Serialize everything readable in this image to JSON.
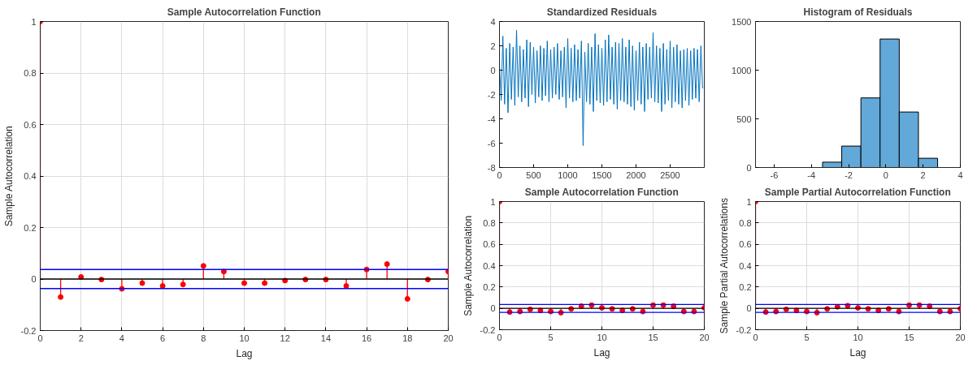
{
  "chart_data": [
    {
      "type": "lollipop",
      "title": "Sample Autocorrelation Function",
      "xlabel": "Lag",
      "ylabel": "Sample Autocorrelation",
      "x": [
        0,
        1,
        2,
        3,
        4,
        5,
        6,
        7,
        8,
        9,
        10,
        11,
        12,
        13,
        14,
        15,
        16,
        17,
        18,
        19,
        20
      ],
      "series": [
        {
          "color": "#ff0000",
          "values": [
            1,
            -0.07,
            0.008,
            -0.002,
            -0.038,
            -0.016,
            -0.027,
            -0.021,
            0.051,
            0.029,
            -0.016,
            -0.016,
            -0.006,
            -0.002,
            -0.002,
            -0.027,
            0.037,
            0.058,
            -0.077,
            -0.002,
            0.029
          ]
        }
      ],
      "xlim": [
        0,
        20
      ],
      "xticks": [
        0,
        2,
        4,
        6,
        8,
        10,
        12,
        14,
        16,
        18,
        20
      ],
      "ylim": [
        -0.2,
        1
      ],
      "yticks": [
        -0.2,
        0,
        0.2,
        0.4,
        0.6,
        0.8,
        1
      ],
      "grid": true,
      "marker": "circle",
      "ref_lines": [
        {
          "axis": "y",
          "value": 0,
          "color": "#000000"
        },
        {
          "axis": "y",
          "value": 0.037,
          "color": "#0000ff"
        },
        {
          "axis": "y",
          "value": -0.037,
          "color": "#0000ff"
        }
      ]
    },
    {
      "type": "line",
      "title": "Standardized Residuals",
      "series": [
        {
          "color": "#0072bd",
          "x": [
            0,
            25,
            50,
            75,
            100,
            125,
            150,
            175,
            200,
            225,
            250,
            275,
            300,
            325,
            350,
            375,
            400,
            425,
            450,
            475,
            500,
            525,
            550,
            575,
            600,
            625,
            650,
            675,
            700,
            725,
            750,
            775,
            800,
            825,
            850,
            875,
            900,
            925,
            950,
            975,
            1000,
            1025,
            1050,
            1075,
            1100,
            1125,
            1150,
            1175,
            1200,
            1225,
            1250,
            1275,
            1300,
            1325,
            1350,
            1375,
            1400,
            1425,
            1450,
            1475,
            1500,
            1525,
            1550,
            1575,
            1600,
            1625,
            1650,
            1675,
            1700,
            1725,
            1750,
            1775,
            1800,
            1825,
            1850,
            1875,
            1900,
            1925,
            1950,
            1975,
            2000,
            2025,
            2050,
            2075,
            2100,
            2125,
            2150,
            2175,
            2200,
            2225,
            2250,
            2275,
            2300,
            2325,
            2350,
            2375,
            2400,
            2425,
            2450,
            2475,
            2500,
            2525,
            2550,
            2575,
            2600,
            2625,
            2650,
            2675,
            2700,
            2725,
            2750,
            2775,
            2800,
            2825,
            2850,
            2875,
            2900,
            2925,
            2950,
            2975
          ],
          "values": [
            0.5,
            -2.5,
            2.8,
            -2.8,
            1.8,
            -3.5,
            2.2,
            -2.4,
            1.9,
            -2.9,
            3.3,
            -2.2,
            2.0,
            -2.6,
            1.7,
            -2.3,
            2.5,
            -3.0,
            2.3,
            -2.0,
            1.9,
            -2.7,
            1.6,
            -2.2,
            2.0,
            -2.5,
            1.8,
            -2.1,
            2.4,
            -2.6,
            1.7,
            -2.3,
            1.9,
            -2.0,
            2.2,
            -2.4,
            1.6,
            -2.2,
            1.9,
            -3.1,
            2.6,
            -2.3,
            1.8,
            -2.6,
            2.1,
            -2.5,
            1.7,
            -2.3,
            2.4,
            -6.2,
            1.5,
            -2.6,
            2.2,
            -2.8,
            1.9,
            -3.4,
            3.0,
            -2.5,
            2.1,
            -2.7,
            1.8,
            -2.9,
            2.5,
            -2.6,
            2.9,
            -2.4,
            1.9,
            -2.8,
            2.3,
            -3.2,
            2.2,
            -2.5,
            2.6,
            -2.6,
            1.9,
            -2.8,
            2.5,
            -3.0,
            2.0,
            -3.3,
            1.6,
            -2.5,
            2.3,
            -2.8,
            1.9,
            -3.4,
            2.2,
            -2.4,
            1.9,
            -2.3,
            3.1,
            -2.6,
            2.0,
            -2.7,
            1.8,
            -3.4,
            2.2,
            -2.8,
            1.7,
            -2.5,
            2.4,
            -3.1,
            1.9,
            -2.6,
            2.1,
            -2.8,
            1.6,
            -3.1,
            1.7,
            -2.5,
            1.8,
            -2.9,
            1.6,
            -2.4,
            1.8,
            -2.3,
            1.7,
            -2.6,
            2.0,
            -1.5
          ]
        }
      ],
      "xlim": [
        0,
        3000
      ],
      "xticks": [
        0,
        500,
        1000,
        1500,
        2000,
        2500
      ],
      "ylim": [
        -8,
        4
      ],
      "yticks": [
        -8,
        -6,
        -4,
        -2,
        0,
        2,
        4
      ],
      "grid": false
    },
    {
      "type": "histogram",
      "title": "Histogram of Residuals",
      "color": "#62a8d8",
      "bins": [
        -3.4,
        -2.37,
        -1.34,
        -0.31,
        0.72,
        1.75,
        2.78
      ],
      "values": [
        55,
        220,
        715,
        1320,
        570,
        95
      ],
      "xlim": [
        -7,
        4
      ],
      "xticks": [
        -6,
        -4,
        -2,
        0,
        2,
        4
      ],
      "ylim": [
        0,
        1500
      ],
      "yticks": [
        0,
        500,
        1000,
        1500
      ],
      "grid": false
    },
    {
      "type": "lollipop",
      "title": "Sample Autocorrelation Function",
      "xlabel": "Lag",
      "ylabel": "Sample Autocorrelation",
      "x": [
        0,
        1,
        2,
        3,
        4,
        5,
        6,
        7,
        8,
        9,
        10,
        11,
        12,
        13,
        14,
        15,
        16,
        17,
        18,
        19,
        20
      ],
      "series": [
        {
          "color": "#ff0000",
          "values": [
            1,
            -0.035,
            -0.03,
            -0.01,
            -0.02,
            -0.03,
            -0.04,
            -0.005,
            0.02,
            0.03,
            0.005,
            -0.005,
            -0.02,
            -0.005,
            -0.03,
            0.03,
            0.03,
            0.02,
            -0.03,
            -0.03,
            0.005
          ]
        }
      ],
      "xlim": [
        0,
        20
      ],
      "xticks": [
        0,
        5,
        10,
        15,
        20
      ],
      "ylim": [
        -0.2,
        1
      ],
      "yticks": [
        -0.2,
        0,
        0.2,
        0.4,
        0.6,
        0.8,
        1
      ],
      "grid": true,
      "marker": "circle",
      "ref_lines": [
        {
          "axis": "y",
          "value": 0,
          "color": "#000000"
        },
        {
          "axis": "y",
          "value": 0.037,
          "color": "#0000ff"
        },
        {
          "axis": "y",
          "value": -0.037,
          "color": "#0000ff"
        }
      ]
    },
    {
      "type": "lollipop",
      "title": "Sample Partial Autocorrelation Function",
      "xlabel": "Lag",
      "ylabel": "Sample Partial Autocorrelations",
      "x": [
        0,
        1,
        2,
        3,
        4,
        5,
        6,
        7,
        8,
        9,
        10,
        11,
        12,
        13,
        14,
        15,
        16,
        17,
        18,
        19,
        20
      ],
      "series": [
        {
          "color": "#ff0000",
          "values": [
            1,
            -0.035,
            -0.03,
            -0.01,
            -0.02,
            -0.03,
            -0.04,
            -0.005,
            0.015,
            0.025,
            0.005,
            -0.005,
            -0.02,
            -0.005,
            -0.03,
            0.03,
            0.03,
            0.02,
            -0.03,
            -0.03,
            -0.003
          ]
        }
      ],
      "xlim": [
        0,
        20
      ],
      "xticks": [
        0,
        5,
        10,
        15,
        20
      ],
      "ylim": [
        -0.2,
        1
      ],
      "yticks": [
        -0.2,
        0,
        0.2,
        0.4,
        0.6,
        0.8,
        1
      ],
      "grid": true,
      "marker": "circle",
      "ref_lines": [
        {
          "axis": "y",
          "value": 0,
          "color": "#000000"
        },
        {
          "axis": "y",
          "value": 0.037,
          "color": "#0000ff"
        },
        {
          "axis": "y",
          "value": -0.037,
          "color": "#0000ff"
        }
      ]
    }
  ]
}
